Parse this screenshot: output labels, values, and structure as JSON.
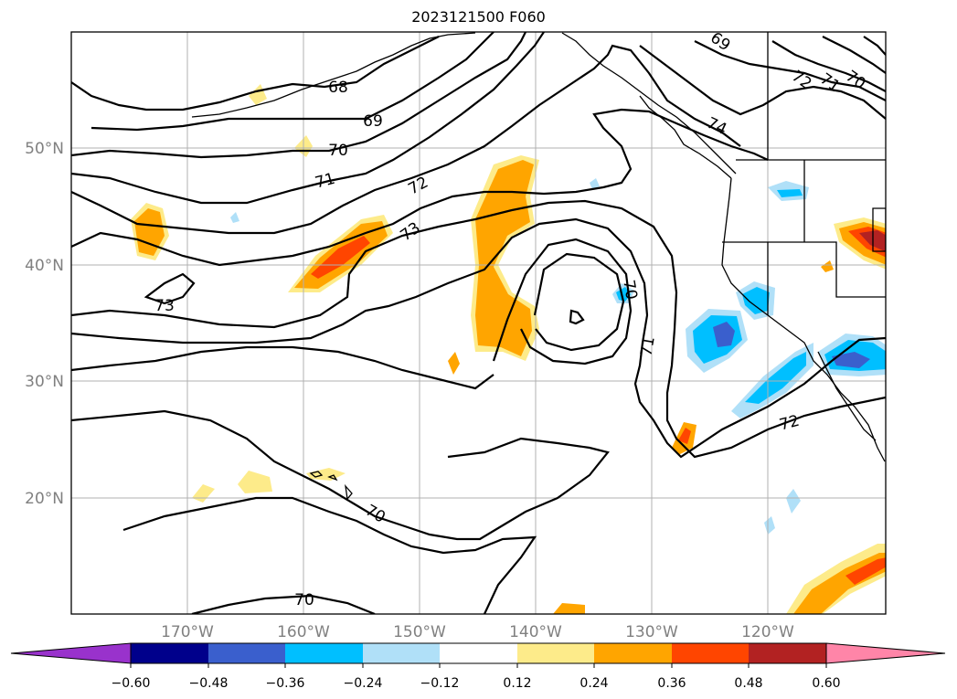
{
  "title": "2023121500 F060",
  "map": {
    "lat_labels": [
      "50°N",
      "40°N",
      "30°N",
      "20°N"
    ],
    "lon_labels": [
      "170°W",
      "160°W",
      "150°W",
      "140°W",
      "130°W",
      "120°W"
    ],
    "contour_labels": [
      "68",
      "69",
      "70",
      "71",
      "72",
      "73",
      "73",
      "74",
      "72",
      "71",
      "70",
      "70",
      "71",
      "72",
      "70",
      "70",
      "69"
    ]
  },
  "colorbar": {
    "labels": [
      "−0.60",
      "−0.48",
      "−0.36",
      "−0.24",
      "−0.12",
      "0.12",
      "0.24",
      "0.36",
      "0.48",
      "0.60"
    ],
    "colors": [
      "#9932cc",
      "#00008b",
      "#3a5fcd",
      "#00bfff",
      "#b0e0f8",
      "#ffffff",
      "#fdeb8a",
      "#ffa500",
      "#ff4500",
      "#b22222",
      "#ff85a8"
    ]
  }
}
